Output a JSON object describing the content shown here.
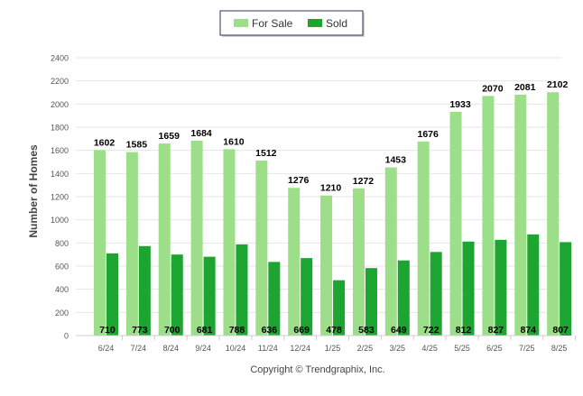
{
  "chart_data": {
    "type": "bar",
    "categories": [
      "6/24",
      "7/24",
      "8/24",
      "9/24",
      "10/24",
      "11/24",
      "12/24",
      "1/25",
      "2/25",
      "3/25",
      "4/25",
      "5/25",
      "6/25",
      "7/25",
      "8/25"
    ],
    "series": [
      {
        "name": "For Sale",
        "color": "#9ddf88",
        "values": [
          1602,
          1585,
          1659,
          1684,
          1610,
          1512,
          1276,
          1210,
          1272,
          1453,
          1676,
          1933,
          2070,
          2081,
          2102
        ]
      },
      {
        "name": "Sold",
        "color": "#1ca531",
        "values": [
          710,
          773,
          700,
          681,
          788,
          636,
          669,
          478,
          583,
          649,
          722,
          812,
          827,
          874,
          807
        ]
      }
    ],
    "title": "",
    "xlabel": "",
    "ylabel": "Number of Homes",
    "ylim": [
      0,
      2400
    ],
    "yticks": [
      0,
      200,
      400,
      600,
      800,
      1000,
      1200,
      1400,
      1600,
      1800,
      2000,
      2200,
      2400
    ],
    "grid": true,
    "legend_position": "top-center"
  },
  "footer": {
    "copyright": "Copyright © Trendgraphix, Inc."
  }
}
